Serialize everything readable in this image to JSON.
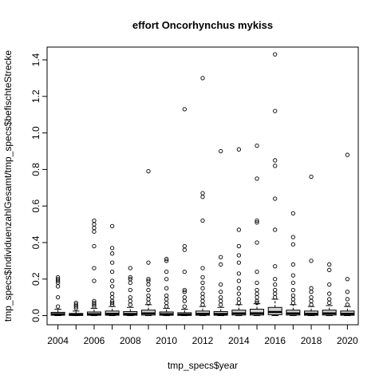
{
  "chart_data": {
    "type": "box",
    "title": "effort Oncorhynchus mykiss",
    "xlabel": "tmp_specs$year",
    "ylabel": "tmp_specs$IndividuenzahlGesamt/tmp_specs$befischteStrecke",
    "ylim": [
      -0.05,
      1.47
    ],
    "yticks": [
      0.0,
      0.2,
      0.4,
      0.6,
      0.8,
      1.0,
      1.2,
      1.4
    ],
    "xtick_labels": [
      "2004",
      "2006",
      "2008",
      "2010",
      "2012",
      "2014",
      "2016",
      "2018",
      "2020"
    ],
    "box_fill": "#d3d3d3",
    "years": [
      {
        "year": 2004,
        "q1": 0.002,
        "median": 0.008,
        "q3": 0.018,
        "whisker_low": 0.0,
        "whisker_high": 0.035,
        "outliers": [
          0.05,
          0.1,
          0.16,
          0.18,
          0.19,
          0.2,
          0.21
        ]
      },
      {
        "year": 2005,
        "q1": 0.001,
        "median": 0.005,
        "q3": 0.012,
        "whisker_low": 0.0,
        "whisker_high": 0.025,
        "outliers": [
          0.04,
          0.05,
          0.06,
          0.07
        ]
      },
      {
        "year": 2006,
        "q1": 0.002,
        "median": 0.008,
        "q3": 0.02,
        "whisker_low": 0.0,
        "whisker_high": 0.04,
        "outliers": [
          0.05,
          0.06,
          0.07,
          0.08,
          0.19,
          0.26,
          0.38,
          0.46,
          0.48,
          0.5,
          0.52
        ]
      },
      {
        "year": 2007,
        "q1": 0.002,
        "median": 0.01,
        "q3": 0.025,
        "whisker_low": 0.0,
        "whisker_high": 0.05,
        "outliers": [
          0.06,
          0.07,
          0.08,
          0.1,
          0.12,
          0.16,
          0.19,
          0.24,
          0.29,
          0.34,
          0.37,
          0.49
        ]
      },
      {
        "year": 2008,
        "q1": 0.002,
        "median": 0.009,
        "q3": 0.022,
        "whisker_low": 0.0,
        "whisker_high": 0.045,
        "outliers": [
          0.06,
          0.08,
          0.1,
          0.14,
          0.18,
          0.2,
          0.21,
          0.26
        ]
      },
      {
        "year": 2009,
        "q1": 0.003,
        "median": 0.012,
        "q3": 0.03,
        "whisker_low": 0.0,
        "whisker_high": 0.06,
        "outliers": [
          0.07,
          0.09,
          0.11,
          0.14,
          0.17,
          0.19,
          0.2,
          0.29,
          0.79
        ]
      },
      {
        "year": 2010,
        "q1": 0.002,
        "median": 0.008,
        "q3": 0.02,
        "whisker_low": 0.0,
        "whisker_high": 0.04,
        "outliers": [
          0.05,
          0.07,
          0.09,
          0.11,
          0.15,
          0.2,
          0.24,
          0.3,
          0.31
        ]
      },
      {
        "year": 2011,
        "q1": 0.001,
        "median": 0.006,
        "q3": 0.016,
        "whisker_low": 0.0,
        "whisker_high": 0.035,
        "outliers": [
          0.05,
          0.08,
          0.1,
          0.13,
          0.14,
          0.24,
          0.36,
          0.38,
          1.13
        ]
      },
      {
        "year": 2012,
        "q1": 0.002,
        "median": 0.01,
        "q3": 0.025,
        "whisker_low": 0.0,
        "whisker_high": 0.05,
        "outliers": [
          0.06,
          0.08,
          0.1,
          0.12,
          0.15,
          0.18,
          0.21,
          0.26,
          0.52,
          0.65,
          0.67,
          1.3
        ]
      },
      {
        "year": 2013,
        "q1": 0.002,
        "median": 0.009,
        "q3": 0.022,
        "whisker_low": 0.0,
        "whisker_high": 0.045,
        "outliers": [
          0.06,
          0.08,
          0.1,
          0.13,
          0.17,
          0.28,
          0.32,
          0.9
        ]
      },
      {
        "year": 2014,
        "q1": 0.003,
        "median": 0.012,
        "q3": 0.03,
        "whisker_low": 0.0,
        "whisker_high": 0.06,
        "outliers": [
          0.07,
          0.09,
          0.12,
          0.15,
          0.19,
          0.23,
          0.29,
          0.33,
          0.38,
          0.47,
          0.91
        ]
      },
      {
        "year": 2015,
        "q1": 0.003,
        "median": 0.013,
        "q3": 0.035,
        "whisker_low": 0.0,
        "whisker_high": 0.065,
        "outliers": [
          0.07,
          0.08,
          0.1,
          0.12,
          0.14,
          0.18,
          0.24,
          0.4,
          0.51,
          0.52,
          0.75,
          0.93
        ]
      },
      {
        "year": 2016,
        "q1": 0.005,
        "median": 0.02,
        "q3": 0.045,
        "whisker_low": 0.0,
        "whisker_high": 0.09,
        "outliers": [
          0.1,
          0.12,
          0.14,
          0.17,
          0.2,
          0.27,
          0.47,
          0.64,
          0.82,
          0.85,
          1.12,
          1.43
        ]
      },
      {
        "year": 2017,
        "q1": 0.003,
        "median": 0.012,
        "q3": 0.03,
        "whisker_low": 0.0,
        "whisker_high": 0.06,
        "outliers": [
          0.07,
          0.09,
          0.11,
          0.14,
          0.18,
          0.22,
          0.28,
          0.39,
          0.43,
          0.56
        ]
      },
      {
        "year": 2018,
        "q1": 0.002,
        "median": 0.01,
        "q3": 0.025,
        "whisker_low": 0.0,
        "whisker_high": 0.05,
        "outliers": [
          0.06,
          0.08,
          0.1,
          0.13,
          0.15,
          0.3,
          0.76
        ]
      },
      {
        "year": 2019,
        "q1": 0.003,
        "median": 0.012,
        "q3": 0.03,
        "whisker_low": 0.0,
        "whisker_high": 0.055,
        "outliers": [
          0.07,
          0.09,
          0.12,
          0.17,
          0.25,
          0.28
        ]
      },
      {
        "year": 2020,
        "q1": 0.002,
        "median": 0.01,
        "q3": 0.025,
        "whisker_low": 0.0,
        "whisker_high": 0.05,
        "outliers": [
          0.06,
          0.09,
          0.13,
          0.2,
          0.88
        ]
      }
    ]
  }
}
